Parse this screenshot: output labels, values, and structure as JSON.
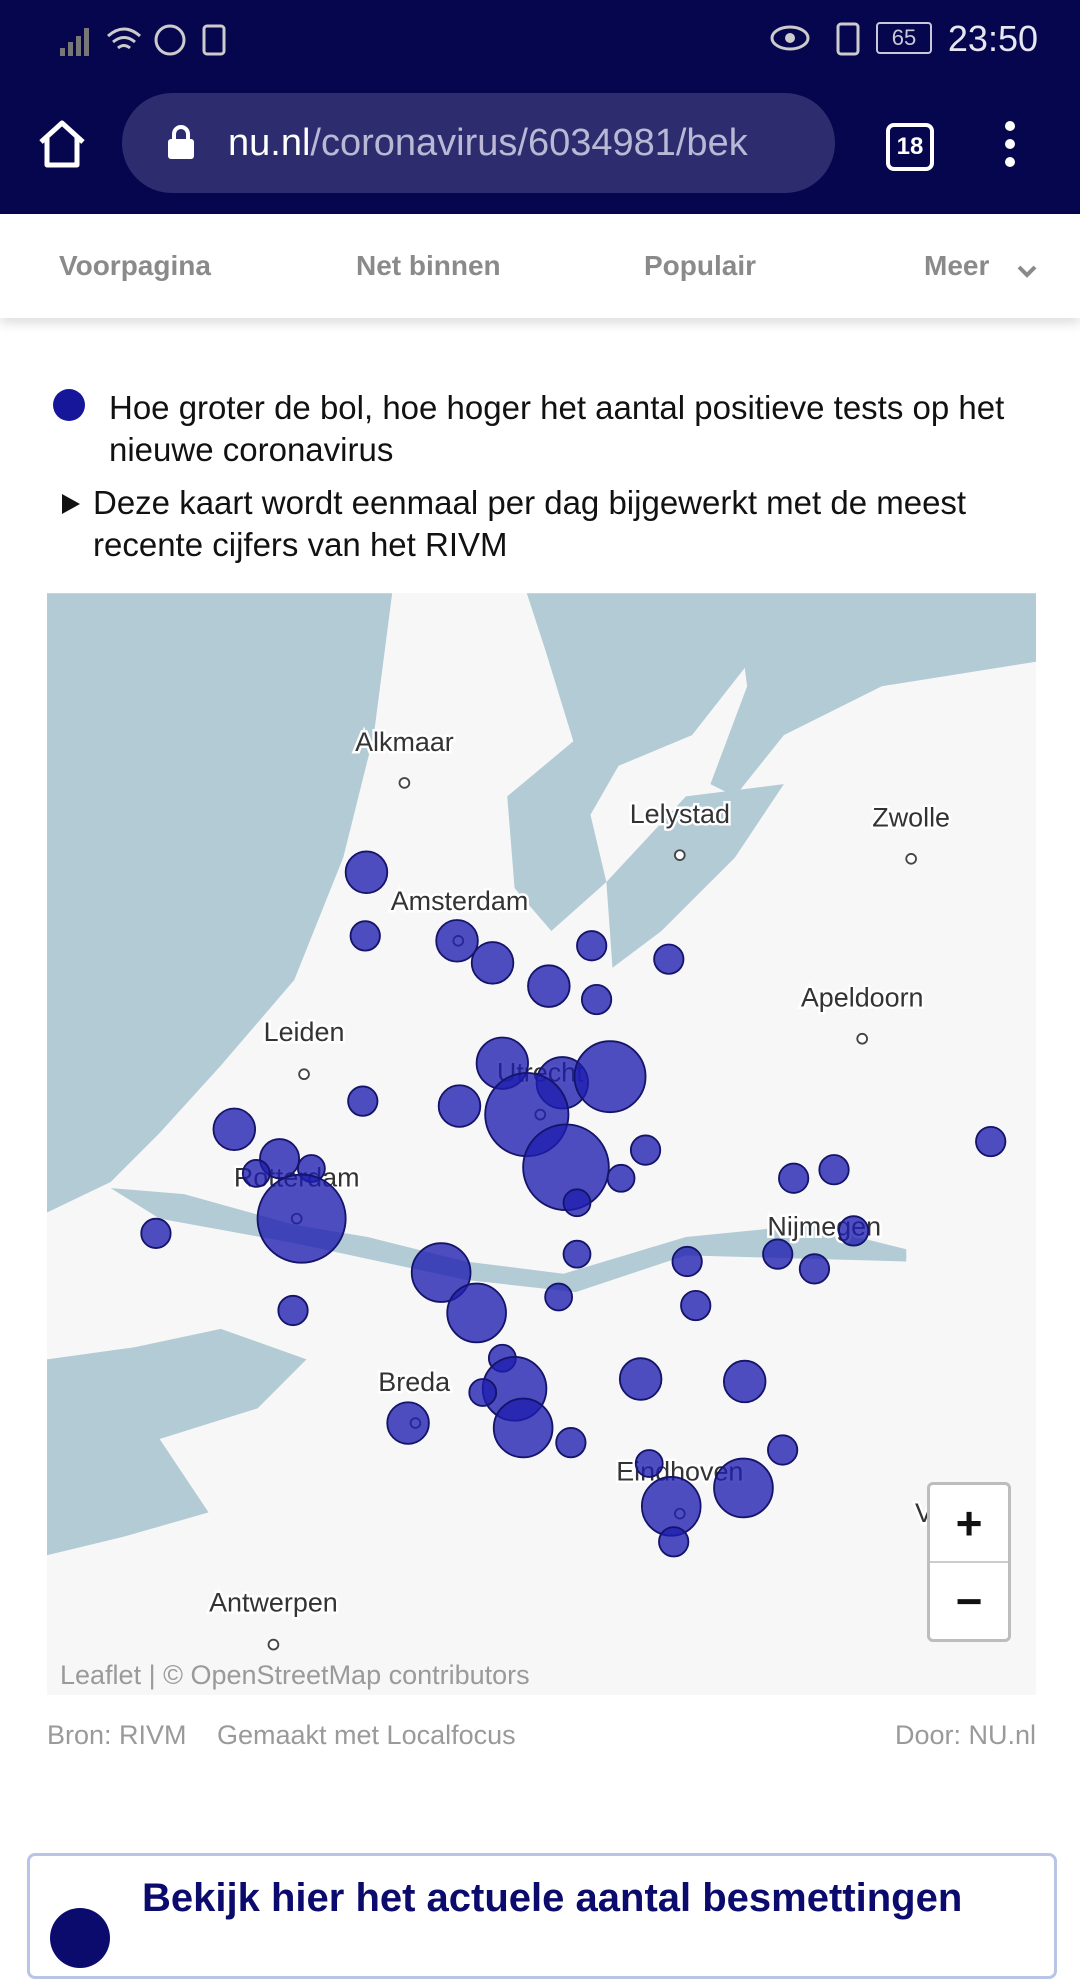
{
  "status_bar": {
    "time": "23:50",
    "battery": "65"
  },
  "browser": {
    "url_domain": "nu.nl",
    "url_path": "/coronavirus/6034981/bek",
    "tab_count": "18"
  },
  "nav": {
    "items": [
      "Voorpagina",
      "Net binnen",
      "Populair",
      "Meer"
    ]
  },
  "legend": {
    "bubble_note": "Hoe groter de bol, hoe hoger het aantal positieve tests op het nieuwe coronavirus",
    "toggle": "Deze kaart wordt eenmaal per dag bijgewerkt met de meest recente cijfers van het RIVM"
  },
  "map": {
    "cities": [
      "Alkmaar",
      "Lelystad",
      "Zwolle",
      "Amsterdam",
      "Apeldoorn",
      "Leiden",
      "Utrecht",
      "Rotterdam",
      "Nijmegen",
      "Breda",
      "Eindhoven",
      "Antwerpen",
      "Ve"
    ],
    "zoom_in": "+",
    "zoom_out": "−",
    "attribution": "Leaflet | © OpenStreetMap contributors"
  },
  "footer": {
    "source": "Bron: RIVM",
    "made_with": "Gemaakt met Localfocus",
    "author": "Door: NU.nl"
  },
  "banner": {
    "title": "Bekijk hier het actuele aantal besmettingen"
  }
}
